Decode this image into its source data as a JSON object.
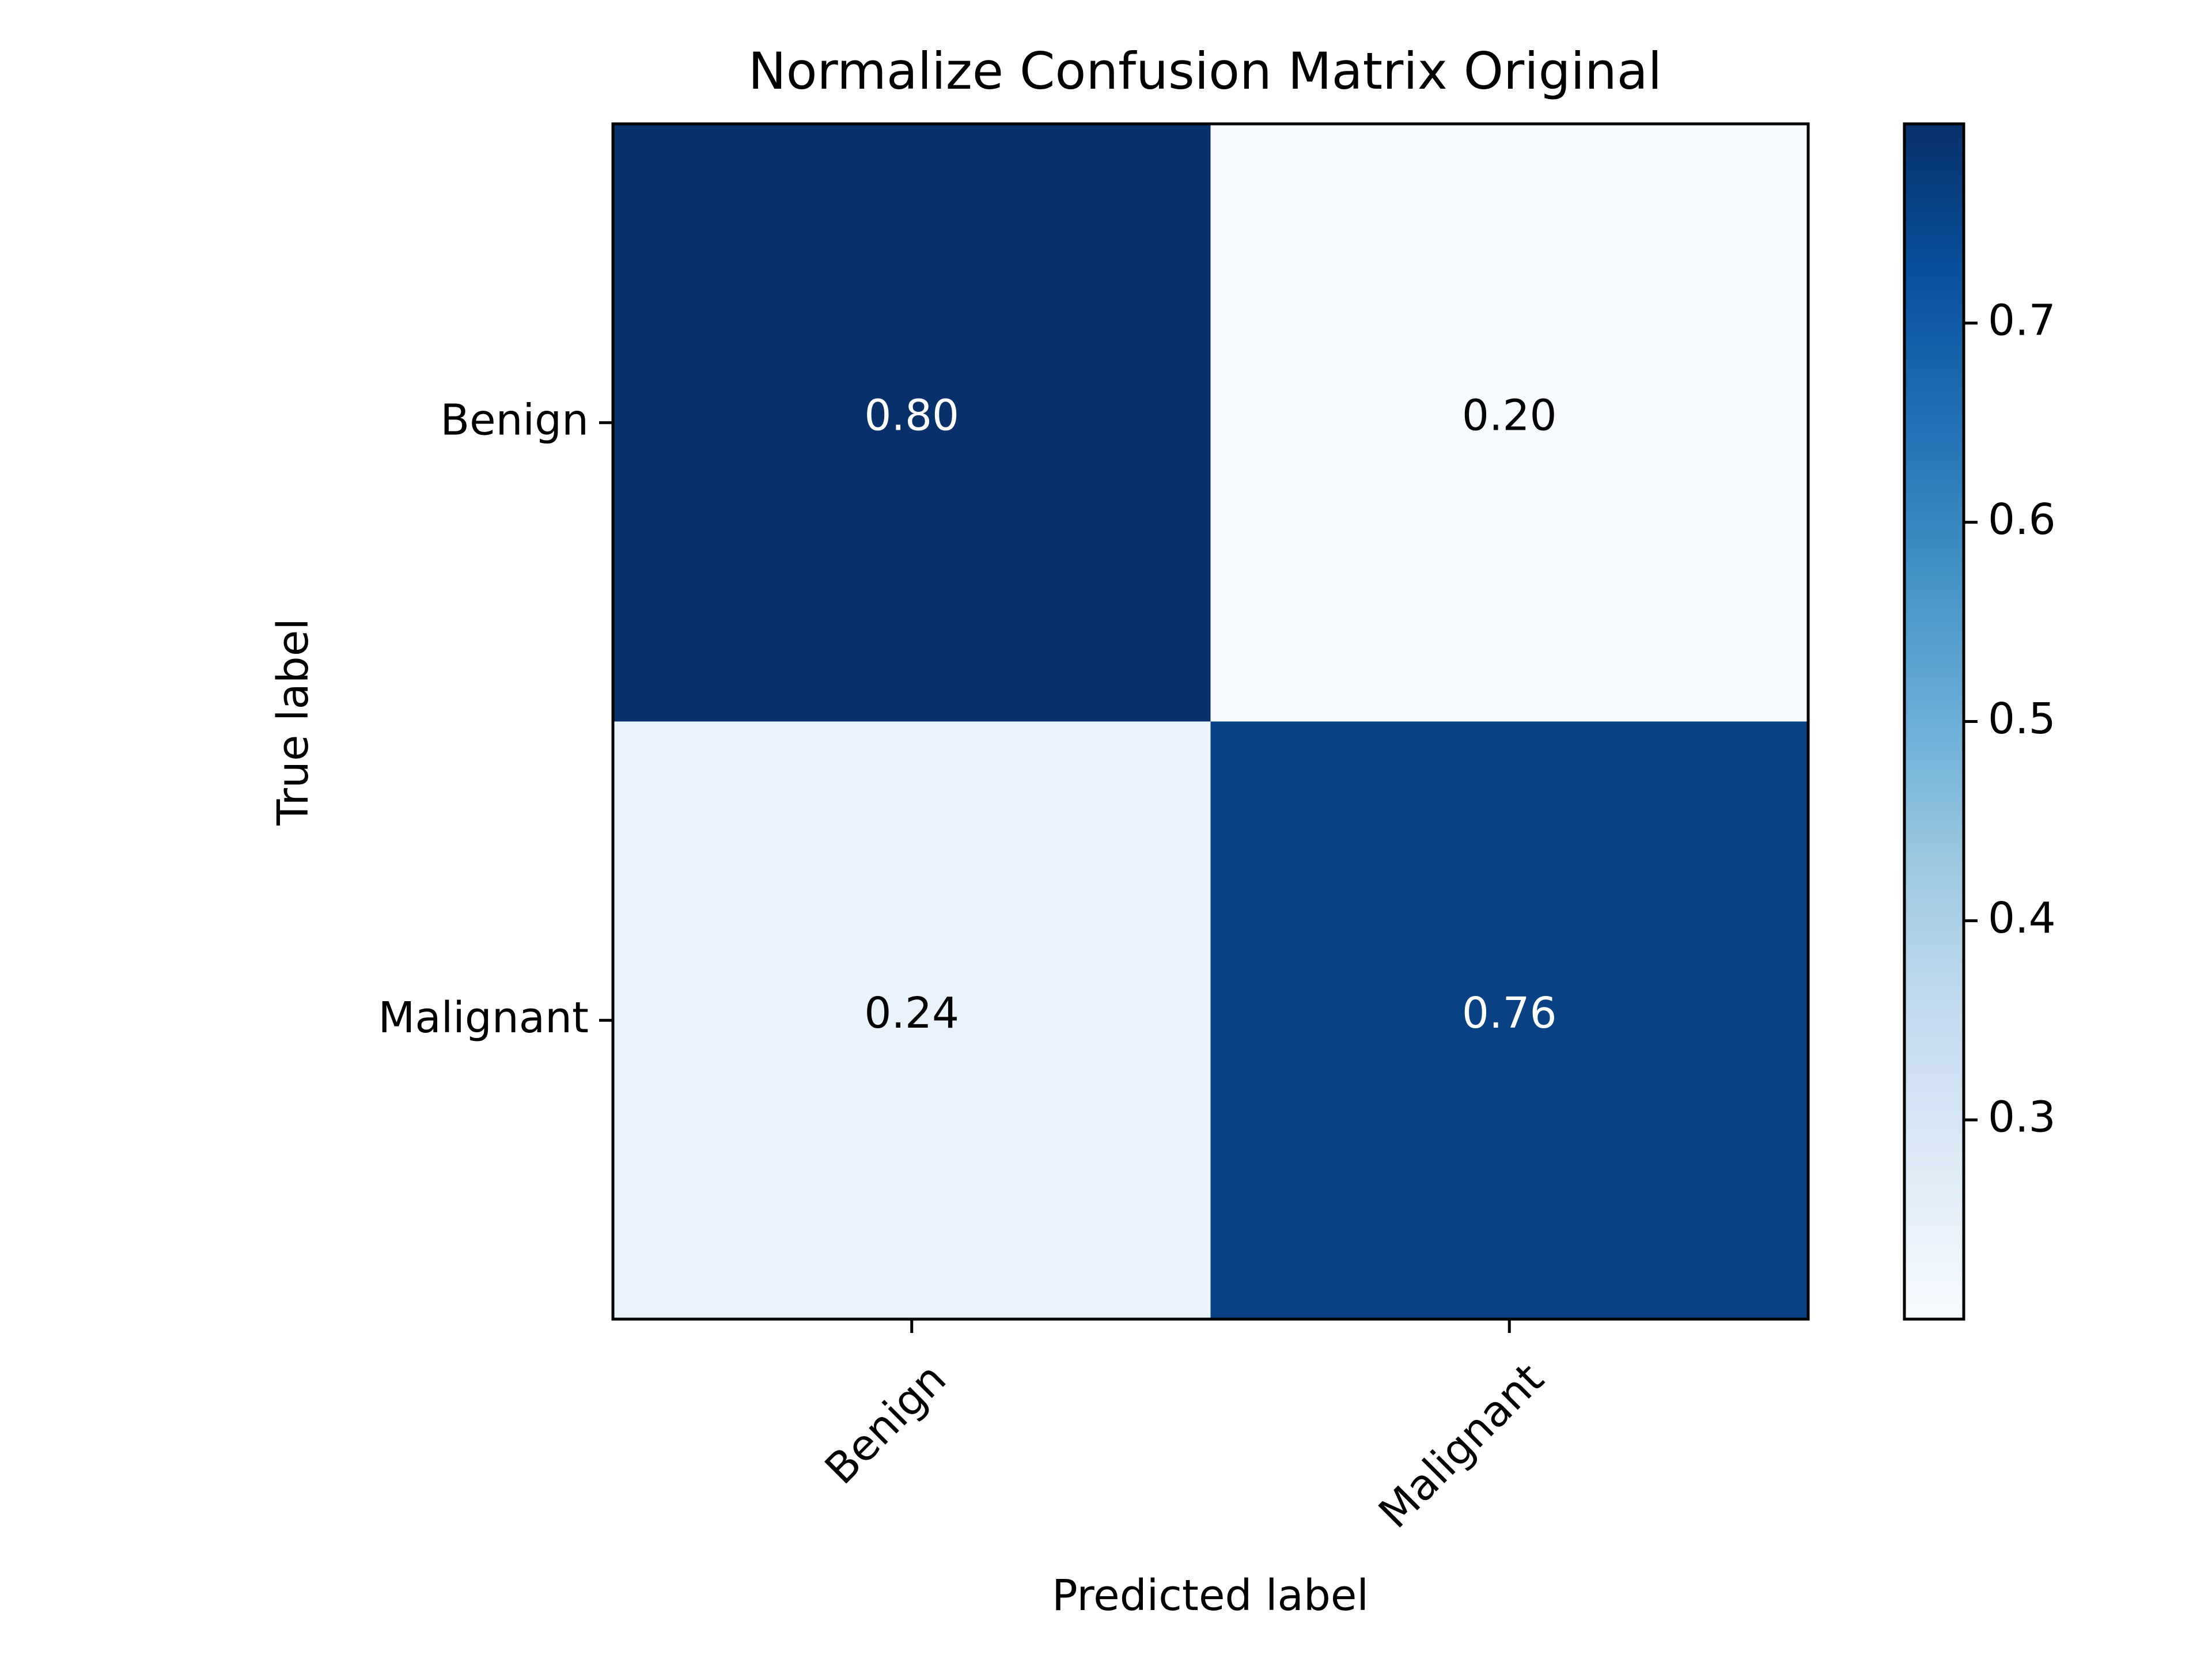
{
  "chart_data": {
    "type": "heatmap",
    "title": "Normalize Confusion Matrix Original",
    "xlabel": "Predicted label",
    "ylabel": "True label",
    "x_categories": [
      "Benign",
      "Malignant"
    ],
    "y_categories": [
      "Benign",
      "Malignant"
    ],
    "values": [
      [
        0.8,
        0.2
      ],
      [
        0.24,
        0.76
      ]
    ],
    "cell_labels": [
      [
        "0.80",
        "0.20"
      ],
      [
        "0.24",
        "0.76"
      ]
    ],
    "colormap": "Blues",
    "colorbar": {
      "range": [
        0.2,
        0.8
      ],
      "ticks": [
        0.3,
        0.4,
        0.5,
        0.6,
        0.7
      ],
      "tick_labels": [
        "0.3",
        "0.4",
        "0.5",
        "0.6",
        "0.7"
      ]
    },
    "x_tick_rotation_deg": 45,
    "grid": false
  }
}
